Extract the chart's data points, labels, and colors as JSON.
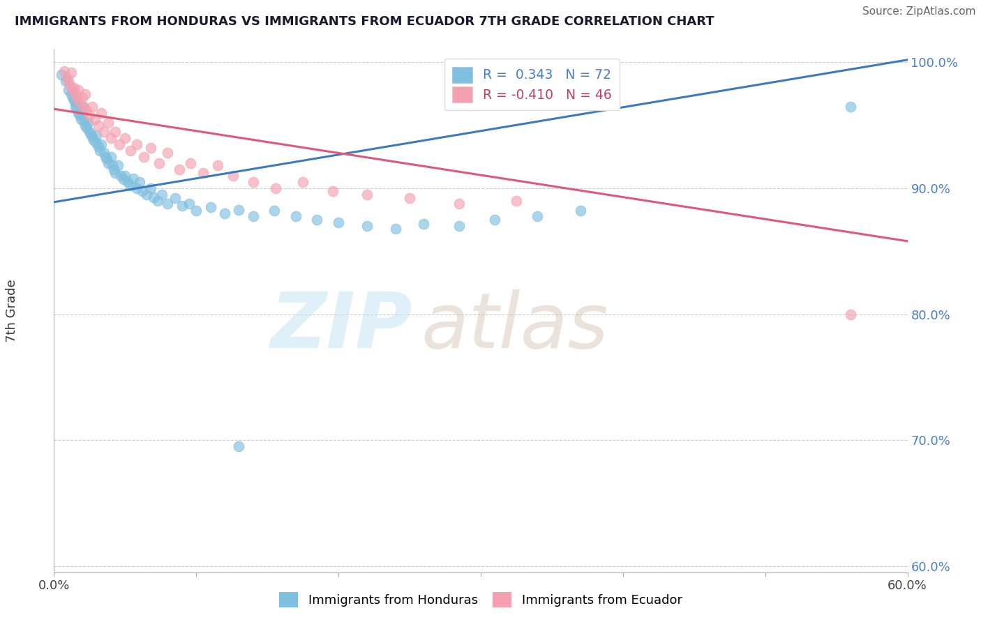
{
  "title": "IMMIGRANTS FROM HONDURAS VS IMMIGRANTS FROM ECUADOR 7TH GRADE CORRELATION CHART",
  "source": "Source: ZipAtlas.com",
  "ylabel": "7th Grade",
  "xlim": [
    0.0,
    0.6
  ],
  "ylim": [
    0.595,
    1.01
  ],
  "yticks": [
    0.6,
    0.7,
    0.8,
    0.9,
    1.0
  ],
  "ytick_labels": [
    "60.0%",
    "70.0%",
    "80.0%",
    "90.0%",
    "100.0%"
  ],
  "blue_R": 0.343,
  "blue_N": 72,
  "pink_R": -0.41,
  "pink_N": 46,
  "blue_color": "#7fbfdf",
  "pink_color": "#f4a0b0",
  "blue_line_color": "#3a7bbf",
  "pink_line_color": "#e05878",
  "legend_label_blue": "Immigrants from Honduras",
  "legend_label_pink": "Immigrants from Ecuador",
  "blue_line_x0": 0.0,
  "blue_line_y0": 0.889,
  "blue_line_x1": 0.6,
  "blue_line_y1": 1.002,
  "pink_line_x0": 0.0,
  "pink_line_y0": 0.963,
  "pink_line_x1": 0.6,
  "pink_line_y1": 0.858,
  "blue_scatter_x": [
    0.005,
    0.008,
    0.01,
    0.012,
    0.013,
    0.014,
    0.015,
    0.015,
    0.016,
    0.017,
    0.018,
    0.019,
    0.02,
    0.02,
    0.021,
    0.022,
    0.023,
    0.024,
    0.025,
    0.026,
    0.027,
    0.028,
    0.03,
    0.03,
    0.031,
    0.032,
    0.033,
    0.035,
    0.036,
    0.037,
    0.038,
    0.04,
    0.041,
    0.042,
    0.043,
    0.045,
    0.047,
    0.049,
    0.05,
    0.052,
    0.054,
    0.056,
    0.058,
    0.06,
    0.062,
    0.065,
    0.068,
    0.07,
    0.073,
    0.076,
    0.08,
    0.085,
    0.09,
    0.095,
    0.1,
    0.11,
    0.12,
    0.13,
    0.14,
    0.155,
    0.17,
    0.185,
    0.2,
    0.22,
    0.24,
    0.26,
    0.285,
    0.31,
    0.34,
    0.37,
    0.13,
    0.56
  ],
  "blue_scatter_y": [
    0.99,
    0.985,
    0.978,
    0.975,
    0.972,
    0.97,
    0.968,
    0.965,
    0.963,
    0.96,
    0.958,
    0.955,
    0.965,
    0.958,
    0.953,
    0.95,
    0.948,
    0.952,
    0.945,
    0.943,
    0.941,
    0.938,
    0.942,
    0.936,
    0.933,
    0.93,
    0.935,
    0.928,
    0.925,
    0.923,
    0.92,
    0.925,
    0.918,
    0.915,
    0.912,
    0.918,
    0.91,
    0.907,
    0.91,
    0.905,
    0.902,
    0.908,
    0.9,
    0.905,
    0.898,
    0.895,
    0.9,
    0.893,
    0.89,
    0.895,
    0.888,
    0.892,
    0.886,
    0.888,
    0.882,
    0.885,
    0.88,
    0.883,
    0.878,
    0.882,
    0.878,
    0.875,
    0.873,
    0.87,
    0.868,
    0.872,
    0.87,
    0.875,
    0.878,
    0.882,
    0.695,
    0.965
  ],
  "pink_scatter_x": [
    0.007,
    0.009,
    0.01,
    0.011,
    0.012,
    0.013,
    0.014,
    0.015,
    0.016,
    0.017,
    0.018,
    0.02,
    0.021,
    0.022,
    0.023,
    0.025,
    0.027,
    0.029,
    0.031,
    0.033,
    0.035,
    0.038,
    0.04,
    0.043,
    0.046,
    0.05,
    0.054,
    0.058,
    0.063,
    0.068,
    0.074,
    0.08,
    0.088,
    0.096,
    0.105,
    0.115,
    0.126,
    0.14,
    0.156,
    0.175,
    0.196,
    0.22,
    0.25,
    0.285,
    0.325,
    0.56
  ],
  "pink_scatter_y": [
    0.993,
    0.988,
    0.985,
    0.982,
    0.992,
    0.978,
    0.98,
    0.975,
    0.972,
    0.978,
    0.968,
    0.972,
    0.965,
    0.975,
    0.962,
    0.958,
    0.965,
    0.955,
    0.95,
    0.96,
    0.945,
    0.952,
    0.94,
    0.945,
    0.935,
    0.94,
    0.93,
    0.935,
    0.925,
    0.932,
    0.92,
    0.928,
    0.915,
    0.92,
    0.912,
    0.918,
    0.91,
    0.905,
    0.9,
    0.905,
    0.898,
    0.895,
    0.892,
    0.888,
    0.89,
    0.8
  ]
}
